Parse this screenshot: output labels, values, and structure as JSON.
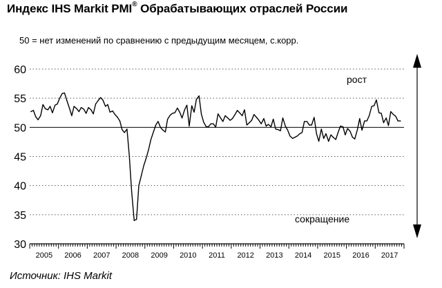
{
  "header": {
    "title_main": "Индекс IHS Markit PMI",
    "title_sup": "®",
    "title_rest": " Обрабатывающих отраслей России",
    "subtitle": "50 = нет изменений по сравнению с предыдущим месяцем, с.корр."
  },
  "footer": {
    "source": "Источник: IHS Markit"
  },
  "chart_data": {
    "type": "line",
    "title": "Индекс IHS Markit PMI® Обрабатывающих отраслей России",
    "subtitle": "50 = нет изменений по сравнению с предыдущим месяцем, с.корр.",
    "xlabel": "",
    "ylabel": "",
    "ylim": [
      30,
      60
    ],
    "yticks": [
      30,
      35,
      40,
      45,
      50,
      55,
      60
    ],
    "xrange": [
      2005.0,
      2018.0
    ],
    "xticks": [
      "2005",
      "2006",
      "2007",
      "2008",
      "2009",
      "2010",
      "2011",
      "2012",
      "2013",
      "2014",
      "2015",
      "2016",
      "2017"
    ],
    "reference_line": 50,
    "grid": "horizontal dashed",
    "annotations": {
      "up": "рост",
      "down": "сокращение"
    },
    "line_color": "#000000",
    "series": [
      {
        "x": [
          2005.04,
          2005.13,
          2005.21,
          2005.29,
          2005.38,
          2005.46,
          2005.54,
          2005.63,
          2005.71,
          2005.79,
          2005.88,
          2005.96,
          2006.04,
          2006.13,
          2006.21,
          2006.29,
          2006.38,
          2006.46,
          2006.54,
          2006.63,
          2006.71,
          2006.79,
          2006.88,
          2006.96,
          2007.04,
          2007.13,
          2007.21,
          2007.29,
          2007.38,
          2007.46,
          2007.54,
          2007.63,
          2007.71,
          2007.79,
          2007.88,
          2007.96,
          2008.04,
          2008.13,
          2008.21,
          2008.29,
          2008.38,
          2008.46,
          2008.54,
          2008.63,
          2008.71,
          2008.79,
          2008.88,
          2008.96,
          2009.04,
          2009.13,
          2009.21,
          2009.29,
          2009.38,
          2009.46,
          2009.54,
          2009.63,
          2009.71,
          2009.79,
          2009.88,
          2009.96,
          2010.04,
          2010.13,
          2010.21,
          2010.29,
          2010.38,
          2010.46,
          2010.54,
          2010.63,
          2010.71,
          2010.79,
          2010.88,
          2010.96,
          2011.04,
          2011.13,
          2011.21,
          2011.29,
          2011.38,
          2011.46,
          2011.54,
          2011.63,
          2011.71,
          2011.79,
          2011.88,
          2011.96,
          2012.04,
          2012.13,
          2012.21,
          2012.29,
          2012.38,
          2012.46,
          2012.54,
          2012.63,
          2012.71,
          2012.79,
          2012.88,
          2012.96,
          2013.04,
          2013.13,
          2013.21,
          2013.29,
          2013.38,
          2013.46,
          2013.54,
          2013.63,
          2013.71,
          2013.79,
          2013.88,
          2013.96,
          2014.04,
          2014.13,
          2014.21,
          2014.29,
          2014.38,
          2014.46,
          2014.54,
          2014.63,
          2014.71,
          2014.79,
          2014.88,
          2014.96,
          2015.04,
          2015.13,
          2015.21,
          2015.29,
          2015.38,
          2015.46,
          2015.54,
          2015.63,
          2015.71,
          2015.79,
          2015.88,
          2015.96,
          2016.04,
          2016.13,
          2016.21,
          2016.29,
          2016.38,
          2016.46,
          2016.54,
          2016.63,
          2016.71,
          2016.79,
          2016.88,
          2016.96,
          2017.04,
          2017.13,
          2017.21,
          2017.29,
          2017.38,
          2017.46,
          2017.54,
          2017.63,
          2017.71,
          2017.79,
          2017.88
        ],
        "y": [
          52.7,
          52.9,
          51.8,
          51.3,
          52.0,
          53.9,
          53.2,
          53.0,
          53.6,
          52.5,
          53.8,
          54.0,
          55.0,
          55.8,
          55.9,
          54.6,
          53.3,
          52.0,
          53.6,
          53.2,
          52.7,
          53.4,
          53.1,
          52.4,
          53.4,
          53.0,
          52.3,
          54.0,
          54.6,
          55.1,
          54.7,
          53.6,
          53.9,
          52.6,
          52.8,
          52.2,
          51.8,
          51.1,
          49.6,
          49.1,
          49.7,
          45.0,
          39.0,
          34.0,
          34.2,
          40.0,
          41.8,
          43.4,
          44.6,
          46.2,
          47.9,
          49.1,
          50.4,
          51.0,
          50.0,
          49.5,
          49.2,
          51.4,
          52.1,
          52.4,
          52.5,
          53.3,
          52.6,
          51.6,
          53.0,
          53.8,
          50.2,
          53.7,
          52.6,
          54.8,
          55.4,
          52.3,
          50.9,
          50.1,
          50.1,
          50.6,
          50.6,
          50.0,
          52.3,
          51.6,
          51.0,
          52.0,
          51.6,
          51.2,
          51.5,
          52.2,
          52.9,
          52.5,
          52.0,
          53.0,
          50.4,
          50.8,
          51.2,
          52.2,
          51.7,
          51.2,
          50.6,
          51.5,
          50.2,
          50.5,
          50.1,
          51.4,
          49.7,
          49.6,
          49.4,
          51.6,
          50.2,
          49.5,
          48.5,
          48.1,
          48.3,
          48.5,
          48.9,
          49.1,
          51.0,
          51.0,
          50.4,
          50.4,
          51.7,
          48.9,
          47.6,
          49.7,
          48.1,
          48.9,
          47.6,
          48.7,
          48.3,
          47.9,
          49.1,
          50.2,
          50.1,
          48.7,
          49.8,
          49.3,
          48.3,
          48.0,
          49.6,
          51.5,
          49.5,
          51.1,
          51.1,
          52.0,
          53.6,
          53.7,
          54.7,
          52.5,
          52.4,
          50.8,
          51.6,
          50.3,
          52.7,
          52.2,
          51.9,
          51.1,
          51.1
        ]
      }
    ]
  }
}
